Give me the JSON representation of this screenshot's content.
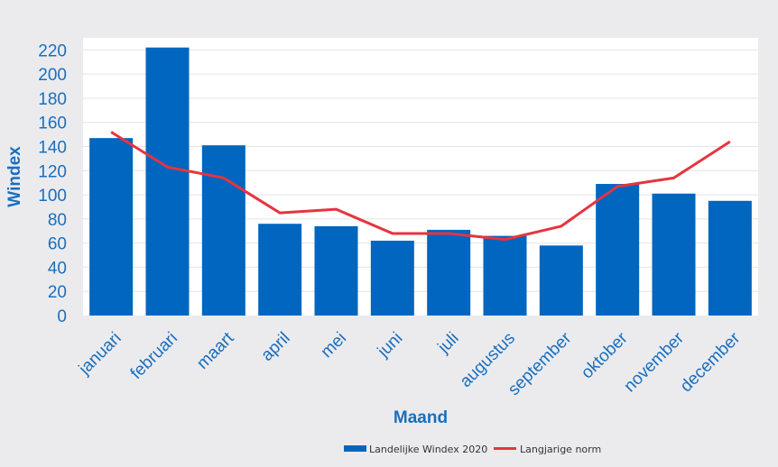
{
  "chart_data": {
    "type": "bar",
    "xlabel": "Maand",
    "ylabel": "Windex",
    "ylim": [
      0,
      230
    ],
    "yticks": [
      0,
      20,
      40,
      60,
      80,
      100,
      120,
      140,
      160,
      180,
      200,
      220
    ],
    "grid": true,
    "legend_position": "bottom-center",
    "categories": [
      "januari",
      "februari",
      "maart",
      "april",
      "mei",
      "juni",
      "juli",
      "augustus",
      "september",
      "oktober",
      "november",
      "december"
    ],
    "series": [
      {
        "name": "Landelijke Windex 2020",
        "type": "bar",
        "color": "#0066bf",
        "values": [
          147,
          222,
          141,
          76,
          74,
          62,
          71,
          66,
          58,
          109,
          101,
          95
        ]
      },
      {
        "name": "Langjarige norm",
        "type": "line",
        "color": "#e63441",
        "values": [
          152,
          123,
          114,
          85,
          88,
          68,
          68,
          63,
          74,
          107,
          114,
          144
        ]
      }
    ]
  }
}
